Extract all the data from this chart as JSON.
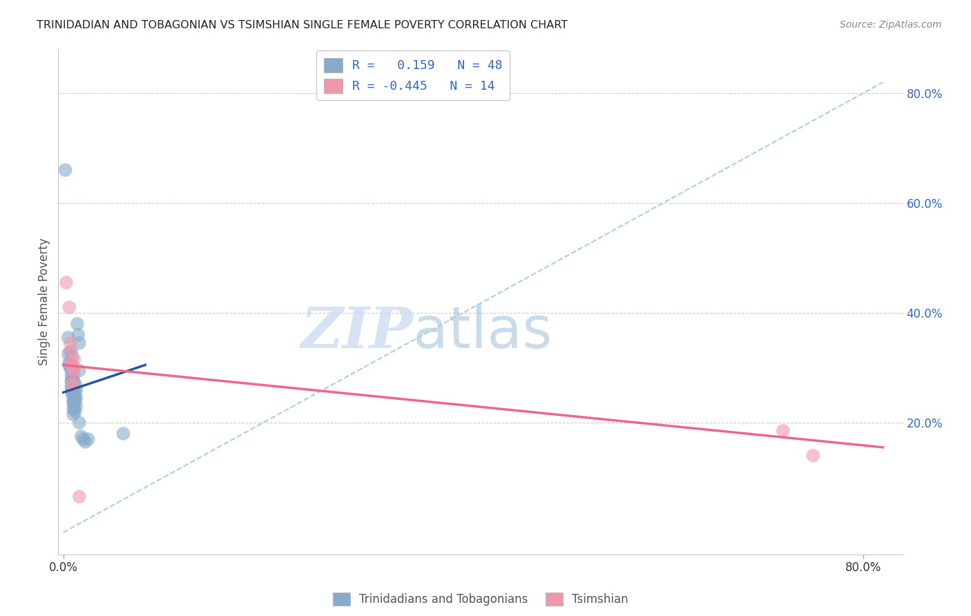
{
  "title": "TRINIDADIAN AND TOBAGONIAN VS TSIMSHIAN SINGLE FEMALE POVERTY CORRELATION CHART",
  "source": "Source: ZipAtlas.com",
  "ylabel": "Single Female Poverty",
  "right_yticks": [
    "80.0%",
    "60.0%",
    "40.0%",
    "20.0%"
  ],
  "right_ytick_vals": [
    0.8,
    0.6,
    0.4,
    0.2
  ],
  "legend1_label": "R =   0.159   N = 48",
  "legend2_label": "R = -0.445   N = 14",
  "legend_bottom": [
    "Trinidadians and Tobagonians",
    "Tsimshian"
  ],
  "blue_color": "#89AACC",
  "pink_color": "#EE99AA",
  "blue_line_color": "#2255AA",
  "pink_line_color": "#EE6688",
  "dashed_line_color": "#AACCEE",
  "watermark_zip": "ZIP",
  "watermark_atlas": "atlas",
  "background_color": "#FFFFFF",
  "blue_line_x": [
    0.0,
    0.082
  ],
  "blue_line_y": [
    0.255,
    0.305
  ],
  "pink_line_x": [
    0.0,
    0.82
  ],
  "pink_line_y": [
    0.305,
    0.155
  ],
  "dashed_line_x": [
    0.0,
    0.82
  ],
  "dashed_line_y": [
    0.0,
    0.82
  ],
  "blue_dots": [
    [
      0.002,
      0.66
    ],
    [
      0.005,
      0.355
    ],
    [
      0.005,
      0.325
    ],
    [
      0.006,
      0.31
    ],
    [
      0.006,
      0.305
    ],
    [
      0.007,
      0.33
    ],
    [
      0.007,
      0.3
    ],
    [
      0.008,
      0.295
    ],
    [
      0.008,
      0.285
    ],
    [
      0.008,
      0.275
    ],
    [
      0.008,
      0.265
    ],
    [
      0.009,
      0.32
    ],
    [
      0.009,
      0.28
    ],
    [
      0.009,
      0.27
    ],
    [
      0.009,
      0.26
    ],
    [
      0.009,
      0.255
    ],
    [
      0.009,
      0.25
    ],
    [
      0.01,
      0.295
    ],
    [
      0.01,
      0.28
    ],
    [
      0.01,
      0.275
    ],
    [
      0.01,
      0.265
    ],
    [
      0.01,
      0.255
    ],
    [
      0.01,
      0.24
    ],
    [
      0.01,
      0.235
    ],
    [
      0.01,
      0.225
    ],
    [
      0.01,
      0.215
    ],
    [
      0.011,
      0.27
    ],
    [
      0.011,
      0.255
    ],
    [
      0.011,
      0.245
    ],
    [
      0.011,
      0.235
    ],
    [
      0.011,
      0.225
    ],
    [
      0.012,
      0.27
    ],
    [
      0.012,
      0.255
    ],
    [
      0.012,
      0.24
    ],
    [
      0.012,
      0.22
    ],
    [
      0.013,
      0.26
    ],
    [
      0.013,
      0.245
    ],
    [
      0.013,
      0.23
    ],
    [
      0.014,
      0.38
    ],
    [
      0.015,
      0.36
    ],
    [
      0.016,
      0.345
    ],
    [
      0.016,
      0.295
    ],
    [
      0.016,
      0.2
    ],
    [
      0.018,
      0.175
    ],
    [
      0.02,
      0.17
    ],
    [
      0.022,
      0.165
    ],
    [
      0.025,
      0.17
    ],
    [
      0.06,
      0.18
    ]
  ],
  "pink_dots": [
    [
      0.003,
      0.455
    ],
    [
      0.006,
      0.41
    ],
    [
      0.007,
      0.345
    ],
    [
      0.008,
      0.33
    ],
    [
      0.008,
      0.31
    ],
    [
      0.009,
      0.305
    ],
    [
      0.009,
      0.27
    ],
    [
      0.01,
      0.295
    ],
    [
      0.01,
      0.27
    ],
    [
      0.011,
      0.315
    ],
    [
      0.011,
      0.295
    ],
    [
      0.016,
      0.065
    ],
    [
      0.72,
      0.185
    ],
    [
      0.75,
      0.14
    ]
  ],
  "xlim": [
    -0.005,
    0.84
  ],
  "ylim": [
    -0.04,
    0.88
  ]
}
